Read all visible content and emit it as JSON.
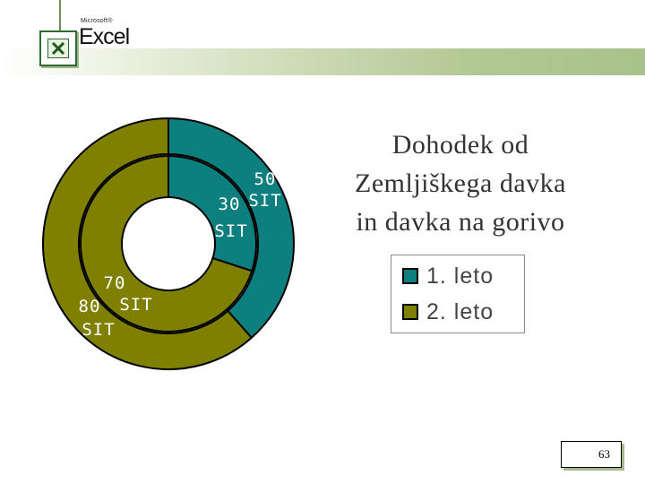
{
  "header": {
    "brand_small": "Microsoft®",
    "brand_big": "Excel",
    "logo_icon": "excel-logo-icon",
    "band_color": "#b3c995"
  },
  "chart_data": {
    "type": "pie",
    "subtype": "doughnut",
    "title": "Dohodek od Zemljiškega davka in davka na gorivo",
    "title_lines": [
      "Dohodek od",
      "Zemljiškega davka",
      "in davka na gorivo"
    ],
    "categories": [
      "1. leto",
      "2. leto"
    ],
    "colors": [
      "#0e7f7f",
      "#7f7f00"
    ],
    "series": [
      {
        "ring": "inner",
        "values": [
          30,
          70
        ],
        "labels": [
          "30 SIT",
          "70 SIT"
        ]
      },
      {
        "ring": "outer",
        "values": [
          50,
          80
        ],
        "labels": [
          "50 SIT",
          "80 SIT"
        ]
      }
    ],
    "legend": {
      "position": "right",
      "entries": [
        "1. leto",
        "2. leto"
      ]
    }
  },
  "footer": {
    "page_number": "63"
  }
}
